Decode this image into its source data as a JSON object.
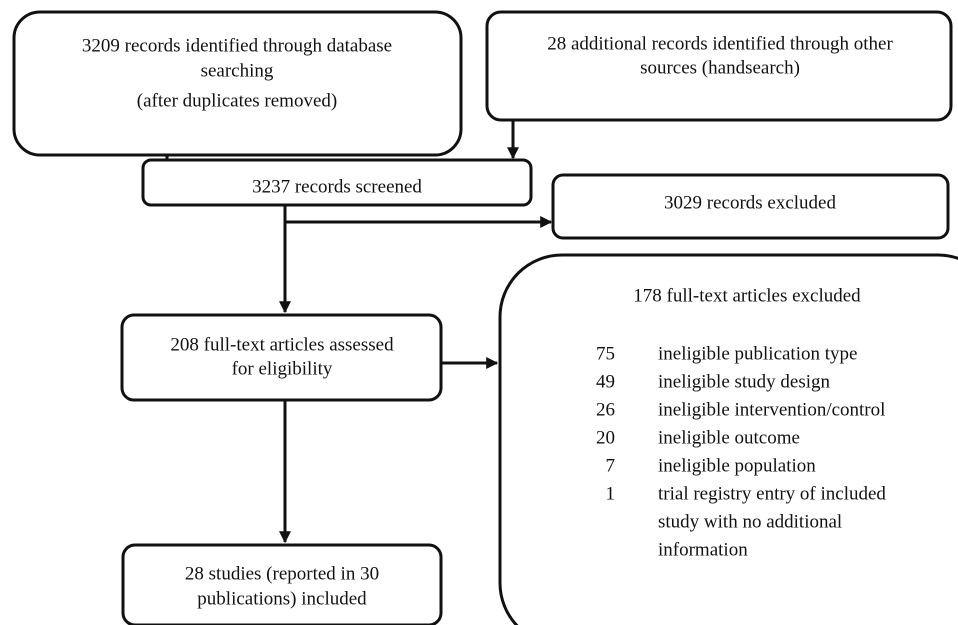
{
  "boxes": {
    "identified": {
      "lines": [
        "3209 records identified through database",
        "searching",
        "(after duplicates removed)"
      ]
    },
    "additional": {
      "lines": [
        "28 additional records identified through other",
        "sources (handsearch)"
      ]
    },
    "screened": {
      "lines": [
        "3237  records screened"
      ]
    },
    "excluded": {
      "lines": [
        "3029  records excluded"
      ]
    },
    "assessed": {
      "lines": [
        "208 full-text articles assessed",
        "for eligibility"
      ]
    },
    "included": {
      "lines": [
        "28 studies (reported in 30",
        "publications) included"
      ]
    },
    "fulltext_excluded": {
      "title": "178 full-text articles excluded",
      "reasons": [
        {
          "count": 75,
          "lines": [
            "ineligible publication type"
          ]
        },
        {
          "count": 49,
          "lines": [
            "ineligible study design"
          ]
        },
        {
          "count": 26,
          "lines": [
            "ineligible intervention/control"
          ]
        },
        {
          "count": 20,
          "lines": [
            "ineligible outcome"
          ]
        },
        {
          "count": 7,
          "lines": [
            "ineligible population"
          ]
        },
        {
          "count": 1,
          "lines": [
            "trial registry entry of included",
            "study with no additional",
            "information"
          ]
        }
      ]
    }
  }
}
